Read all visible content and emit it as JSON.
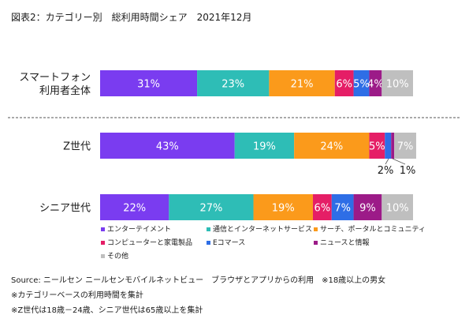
{
  "title": "図表2：カテゴリー別　総利用時間シェア　2021年12月",
  "chart_data": {
    "type": "bar",
    "orientation": "horizontal",
    "stacked": true,
    "unit": "%",
    "categories": [
      "スマートフォン利用者全体",
      "Z世代",
      "シニア世代"
    ],
    "category_labels": [
      [
        "スマートフォン",
        "利用者全体"
      ],
      [
        "Z世代"
      ],
      [
        "シニア世代"
      ]
    ],
    "series": [
      {
        "name": "エンターテイメント",
        "color": "#7a3cf0",
        "values": [
          31,
          43,
          22
        ]
      },
      {
        "name": "通信とインターネットサービス",
        "color": "#2ebdb6",
        "values": [
          23,
          19,
          27
        ]
      },
      {
        "name": "サーチ、ポータルとコミュニティ",
        "color": "#fb9a1b",
        "values": [
          21,
          24,
          19
        ]
      },
      {
        "name": "コンピューターと家電製品",
        "color": "#e51e66",
        "values": [
          6,
          5,
          6
        ]
      },
      {
        "name": "Eコマース",
        "color": "#2e6ee6",
        "values": [
          5,
          2,
          7
        ]
      },
      {
        "name": "ニュースと情報",
        "color": "#9c1b88",
        "values": [
          4,
          1,
          9
        ]
      },
      {
        "name": "その他",
        "color": "#bfbfbf",
        "values": [
          10,
          7,
          10
        ]
      }
    ],
    "data_labels": [
      [
        "31%",
        "23%",
        "21%",
        "6%",
        "5%",
        "4%",
        "10%"
      ],
      [
        "43%",
        "19%",
        "24%",
        "5%",
        "2%",
        "1%",
        "7%"
      ],
      [
        "22%",
        "27%",
        "19%",
        "6%",
        "7%",
        "9%",
        "10%"
      ]
    ],
    "legend_position": "bottom",
    "separator_after": "スマートフォン利用者全体"
  },
  "notes": [
    "Source: ニールセン ニールセンモバイルネットビュー　ブラウザとアプリからの利用　※18歳以上の男女",
    "※カテゴリーベースの利用時間を集計",
    "※Z世代は18歳－24歳、シニア世代は65歳以上を集計"
  ]
}
